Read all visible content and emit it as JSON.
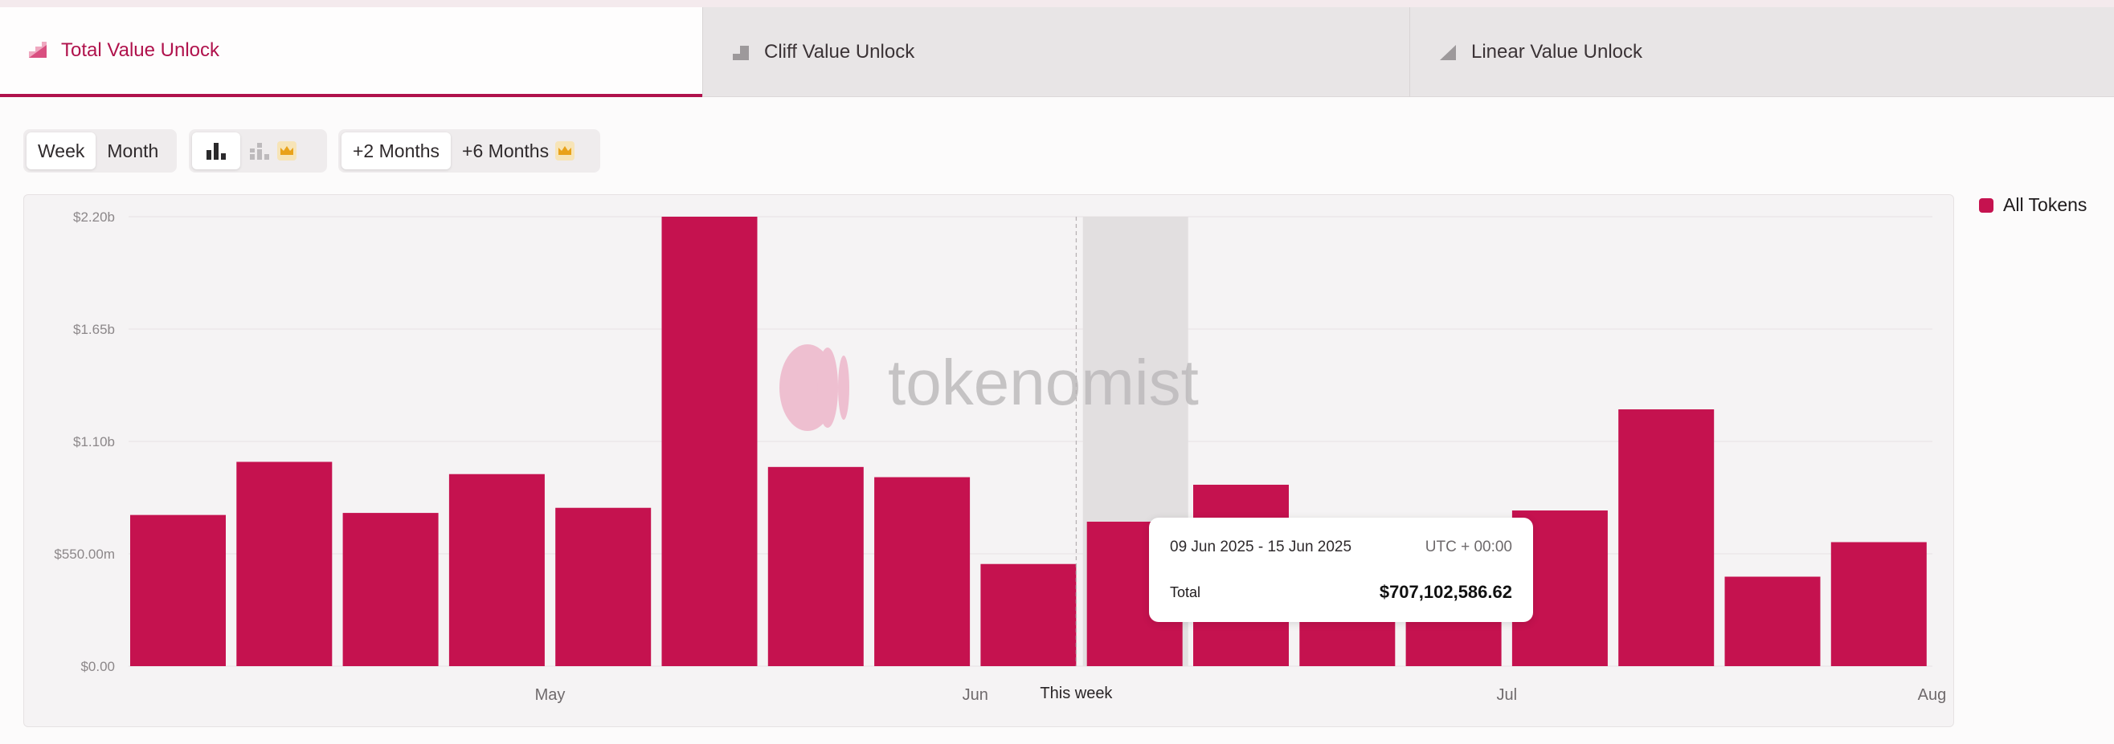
{
  "tabs": [
    {
      "label": "Total Value Unlock",
      "icon": "total-unlock-icon"
    },
    {
      "label": "Cliff Value Unlock",
      "icon": "cliff-step-icon"
    },
    {
      "label": "Linear Value Unlock",
      "icon": "linear-ramp-icon"
    }
  ],
  "controls": {
    "week_label": "Week",
    "month_label": "Month",
    "bar_icon": "bar-chart-icon",
    "stacked_icon": "stacked-bar-icon",
    "plus2_label": "+2 Months",
    "plus6_label": "+6 Months",
    "premium_icon": "crown-icon"
  },
  "watermark": "tokenomist",
  "legend": {
    "label": "All Tokens",
    "color": "#c5124f"
  },
  "tooltip": {
    "range": "09 Jun 2025 - 15 Jun 2025",
    "timezone": "UTC + 00:00",
    "total_label": "Total",
    "total_value": "$707,102,586.62"
  },
  "chart_data": {
    "type": "bar",
    "title": "",
    "xlabel": "",
    "ylabel": "",
    "series": [
      {
        "name": "All Tokens",
        "color": "#c5124f",
        "values": [
          740,
          1000,
          750,
          940,
          775,
          2200,
          975,
          925,
          500,
          707.1,
          888,
          480,
          550,
          762,
          1257,
          438,
          607
        ]
      }
    ],
    "ylim": [
      0,
      2200
    ],
    "yticks": [
      0,
      550,
      1100,
      1650,
      2200
    ],
    "ytick_labels": [
      "$0.00",
      "$550.00m",
      "$1.10b",
      "$1.65b",
      "$2.20b"
    ],
    "x_month_labels": [
      {
        "label": "May",
        "bar_index": 3.5
      },
      {
        "label": "Jun",
        "bar_index": 7.5
      },
      {
        "label": "Jul",
        "bar_index": 12.5
      },
      {
        "label": "Aug",
        "bar_index": 16.5
      }
    ],
    "current_week": {
      "label": "This week",
      "bar_index": 8.45
    },
    "highlighted_bar_index": 9,
    "grid": true
  }
}
